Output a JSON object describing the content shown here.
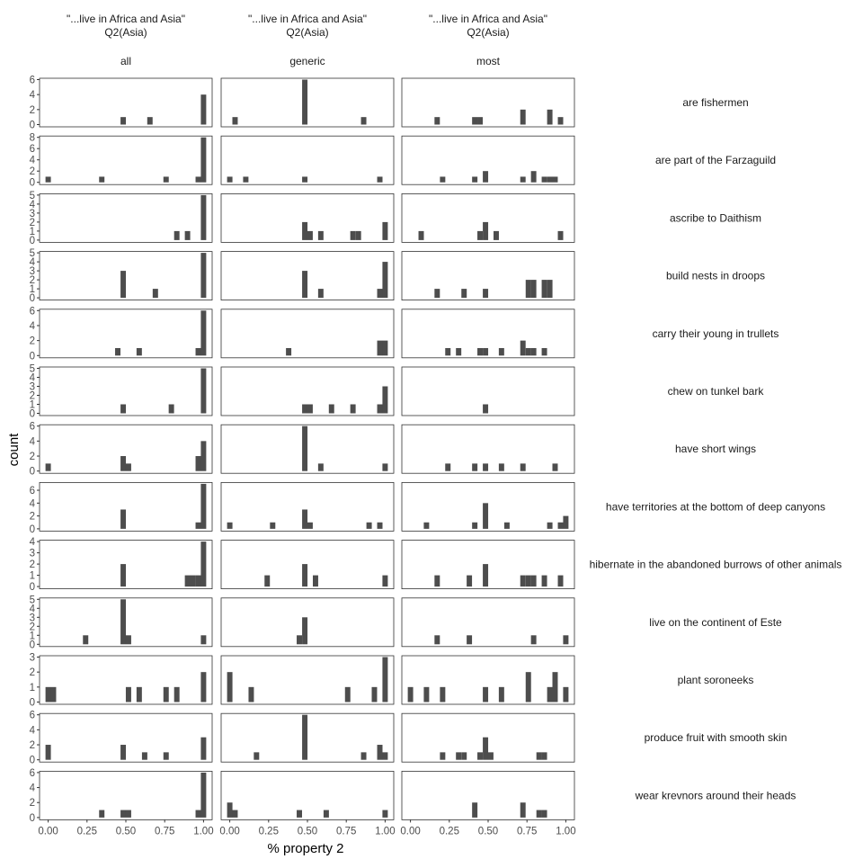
{
  "chart_data": {
    "type": "bar",
    "subtype": "faceted-histogram",
    "xlabel": "% property 2",
    "ylabel": "count",
    "xlim": [
      0,
      1
    ],
    "x_ticks": [
      "0.00",
      "0.25",
      "0.50",
      "0.75",
      "1.00"
    ],
    "bin_width": 0.0345,
    "grid": false,
    "column_headers": [
      {
        "line1": "\"...live in Africa and Asia\"",
        "line2": "Q2(Asia)",
        "label": "all"
      },
      {
        "line1": "\"...live in Africa and Asia\"",
        "line2": "Q2(Asia)",
        "label": "generic"
      },
      {
        "line1": "\"...live in Africa and Asia\"",
        "line2": "Q2(Asia)",
        "label": "most"
      }
    ],
    "rows": [
      {
        "label": "are fishermen",
        "ymax": 6,
        "yticks": [
          "0",
          "2",
          "4",
          "6"
        ],
        "cols": [
          [
            [
              0.483,
              1
            ],
            [
              0.655,
              1
            ],
            [
              1.0,
              4
            ]
          ],
          [
            [
              0.034,
              1
            ],
            [
              0.483,
              6
            ],
            [
              0.862,
              1
            ]
          ],
          [
            [
              0.172,
              1
            ],
            [
              0.414,
              1
            ],
            [
              0.448,
              1
            ],
            [
              0.724,
              2
            ],
            [
              0.897,
              2
            ],
            [
              0.966,
              1
            ]
          ]
        ]
      },
      {
        "label": "are part of the Farzaguild",
        "ymax": 8,
        "yticks": [
          "0",
          "2",
          "4",
          "6",
          "8"
        ],
        "cols": [
          [
            [
              0.0,
              1
            ],
            [
              0.345,
              1
            ],
            [
              0.759,
              1
            ],
            [
              0.966,
              1
            ],
            [
              1.0,
              8
            ]
          ],
          [
            [
              0.0,
              1
            ],
            [
              0.103,
              1
            ],
            [
              0.483,
              1
            ],
            [
              0.966,
              1
            ]
          ],
          [
            [
              0.207,
              1
            ],
            [
              0.414,
              1
            ],
            [
              0.483,
              2
            ],
            [
              0.724,
              1
            ],
            [
              0.793,
              2
            ],
            [
              0.862,
              1
            ],
            [
              0.897,
              1
            ],
            [
              0.931,
              1
            ]
          ]
        ]
      },
      {
        "label": "ascribe to Daithism",
        "ymax": 5,
        "yticks": [
          "0",
          "1",
          "2",
          "3",
          "4",
          "5"
        ],
        "cols": [
          [
            [
              0.828,
              1
            ],
            [
              0.897,
              1
            ],
            [
              1.0,
              5
            ]
          ],
          [
            [
              0.483,
              2
            ],
            [
              0.517,
              1
            ],
            [
              0.586,
              1
            ],
            [
              0.793,
              1
            ],
            [
              0.828,
              1
            ],
            [
              1.0,
              2
            ]
          ],
          [
            [
              0.069,
              1
            ],
            [
              0.448,
              1
            ],
            [
              0.483,
              2
            ],
            [
              0.552,
              1
            ],
            [
              0.966,
              1
            ]
          ]
        ]
      },
      {
        "label": "build nests in droops",
        "ymax": 5,
        "yticks": [
          "0",
          "1",
          "2",
          "3",
          "4",
          "5"
        ],
        "cols": [
          [
            [
              0.483,
              3
            ],
            [
              0.69,
              1
            ],
            [
              1.0,
              5
            ]
          ],
          [
            [
              0.483,
              3
            ],
            [
              0.586,
              1
            ],
            [
              0.966,
              1
            ],
            [
              1.0,
              4
            ]
          ],
          [
            [
              0.172,
              1
            ],
            [
              0.345,
              1
            ],
            [
              0.483,
              1
            ],
            [
              0.759,
              2
            ],
            [
              0.793,
              2
            ],
            [
              0.862,
              2
            ],
            [
              0.897,
              2
            ]
          ]
        ]
      },
      {
        "label": "carry their young in trullets",
        "ymax": 6,
        "yticks": [
          "0",
          "2",
          "4",
          "6"
        ],
        "cols": [
          [
            [
              0.448,
              1
            ],
            [
              0.586,
              1
            ],
            [
              0.966,
              1
            ],
            [
              1.0,
              6
            ]
          ],
          [
            [
              0.379,
              1
            ],
            [
              0.966,
              2
            ],
            [
              1.0,
              2
            ]
          ],
          [
            [
              0.241,
              1
            ],
            [
              0.31,
              1
            ],
            [
              0.448,
              1
            ],
            [
              0.483,
              1
            ],
            [
              0.586,
              1
            ],
            [
              0.724,
              2
            ],
            [
              0.759,
              1
            ],
            [
              0.793,
              1
            ],
            [
              0.862,
              1
            ]
          ]
        ]
      },
      {
        "label": "chew on tunkel bark",
        "ymax": 5,
        "yticks": [
          "0",
          "1",
          "2",
          "3",
          "4",
          "5"
        ],
        "cols": [
          [
            [
              0.483,
              1
            ],
            [
              0.793,
              1
            ],
            [
              1.0,
              5
            ]
          ],
          [
            [
              0.483,
              1
            ],
            [
              0.517,
              1
            ],
            [
              0.655,
              1
            ],
            [
              0.793,
              1
            ],
            [
              0.966,
              1
            ],
            [
              1.0,
              3
            ]
          ],
          [
            [
              0.483,
              1
            ]
          ]
        ]
      },
      {
        "label": "have short wings",
        "ymax": 6,
        "yticks": [
          "0",
          "2",
          "4",
          "6"
        ],
        "cols": [
          [
            [
              0.0,
              1
            ],
            [
              0.483,
              2
            ],
            [
              0.517,
              1
            ],
            [
              0.966,
              2
            ],
            [
              1.0,
              4
            ]
          ],
          [
            [
              0.483,
              6
            ],
            [
              0.586,
              1
            ],
            [
              1.0,
              1
            ]
          ],
          [
            [
              0.241,
              1
            ],
            [
              0.414,
              1
            ],
            [
              0.483,
              1
            ],
            [
              0.586,
              1
            ],
            [
              0.724,
              1
            ],
            [
              0.931,
              1
            ]
          ]
        ]
      },
      {
        "label": "have territories at the bottom of deep canyons",
        "ymax": 7,
        "yticks": [
          "0",
          "2",
          "4",
          "6"
        ],
        "cols": [
          [
            [
              0.483,
              3
            ],
            [
              0.966,
              1
            ],
            [
              1.0,
              7
            ]
          ],
          [
            [
              0.0,
              1
            ],
            [
              0.276,
              1
            ],
            [
              0.483,
              3
            ],
            [
              0.517,
              1
            ],
            [
              0.897,
              1
            ],
            [
              0.966,
              1
            ]
          ],
          [
            [
              0.103,
              1
            ],
            [
              0.414,
              1
            ],
            [
              0.483,
              4
            ],
            [
              0.621,
              1
            ],
            [
              0.897,
              1
            ],
            [
              0.966,
              1
            ],
            [
              1.0,
              2
            ]
          ]
        ]
      },
      {
        "label": "hibernate in the abandoned burrows of other animals",
        "ymax": 4,
        "yticks": [
          "0",
          "1",
          "2",
          "3",
          "4"
        ],
        "cols": [
          [
            [
              0.483,
              2
            ],
            [
              0.897,
              1
            ],
            [
              0.931,
              1
            ],
            [
              0.966,
              1
            ],
            [
              1.0,
              4
            ]
          ],
          [
            [
              0.241,
              1
            ],
            [
              0.483,
              2
            ],
            [
              0.552,
              1
            ],
            [
              1.0,
              1
            ]
          ],
          [
            [
              0.172,
              1
            ],
            [
              0.379,
              1
            ],
            [
              0.483,
              2
            ],
            [
              0.724,
              1
            ],
            [
              0.759,
              1
            ],
            [
              0.793,
              1
            ],
            [
              0.862,
              1
            ],
            [
              0.966,
              1
            ]
          ]
        ]
      },
      {
        "label": "live on the continent of Este",
        "ymax": 5,
        "yticks": [
          "0",
          "1",
          "2",
          "3",
          "4",
          "5"
        ],
        "cols": [
          [
            [
              0.241,
              1
            ],
            [
              0.483,
              5
            ],
            [
              0.517,
              1
            ],
            [
              1.0,
              1
            ]
          ],
          [
            [
              0.448,
              1
            ],
            [
              0.483,
              3
            ]
          ],
          [
            [
              0.172,
              1
            ],
            [
              0.379,
              1
            ],
            [
              0.793,
              1
            ],
            [
              1.0,
              1
            ]
          ]
        ]
      },
      {
        "label": "plant soroneeks",
        "ymax": 3,
        "yticks": [
          "0",
          "1",
          "2",
          "3"
        ],
        "cols": [
          [
            [
              0.0,
              1
            ],
            [
              0.034,
              1
            ],
            [
              0.517,
              1
            ],
            [
              0.586,
              1
            ],
            [
              0.759,
              1
            ],
            [
              0.828,
              1
            ],
            [
              1.0,
              2
            ]
          ],
          [
            [
              0.0,
              2
            ],
            [
              0.138,
              1
            ],
            [
              0.759,
              1
            ],
            [
              0.931,
              1
            ],
            [
              1.0,
              3
            ]
          ],
          [
            [
              0.0,
              1
            ],
            [
              0.103,
              1
            ],
            [
              0.207,
              1
            ],
            [
              0.483,
              1
            ],
            [
              0.586,
              1
            ],
            [
              0.759,
              2
            ],
            [
              0.897,
              1
            ],
            [
              0.931,
              2
            ],
            [
              1.0,
              1
            ]
          ]
        ]
      },
      {
        "label": "produce fruit with smooth skin",
        "ymax": 6,
        "yticks": [
          "0",
          "2",
          "4",
          "6"
        ],
        "cols": [
          [
            [
              0.0,
              2
            ],
            [
              0.483,
              2
            ],
            [
              0.621,
              1
            ],
            [
              0.759,
              1
            ],
            [
              1.0,
              3
            ]
          ],
          [
            [
              0.172,
              1
            ],
            [
              0.483,
              6
            ],
            [
              0.862,
              1
            ],
            [
              0.966,
              2
            ],
            [
              1.0,
              1
            ]
          ],
          [
            [
              0.207,
              1
            ],
            [
              0.31,
              1
            ],
            [
              0.345,
              1
            ],
            [
              0.448,
              1
            ],
            [
              0.483,
              3
            ],
            [
              0.517,
              1
            ],
            [
              0.828,
              1
            ],
            [
              0.862,
              1
            ]
          ]
        ]
      },
      {
        "label": "wear krevnors around their heads",
        "ymax": 6,
        "yticks": [
          "0",
          "2",
          "4",
          "6"
        ],
        "cols": [
          [
            [
              0.345,
              1
            ],
            [
              0.483,
              1
            ],
            [
              0.517,
              1
            ],
            [
              0.966,
              1
            ],
            [
              1.0,
              6
            ]
          ],
          [
            [
              0.0,
              2
            ],
            [
              0.034,
              1
            ],
            [
              0.448,
              1
            ],
            [
              0.621,
              1
            ],
            [
              1.0,
              1
            ]
          ],
          [
            [
              0.414,
              2
            ],
            [
              0.724,
              2
            ],
            [
              0.828,
              1
            ],
            [
              0.862,
              1
            ]
          ]
        ]
      }
    ]
  }
}
